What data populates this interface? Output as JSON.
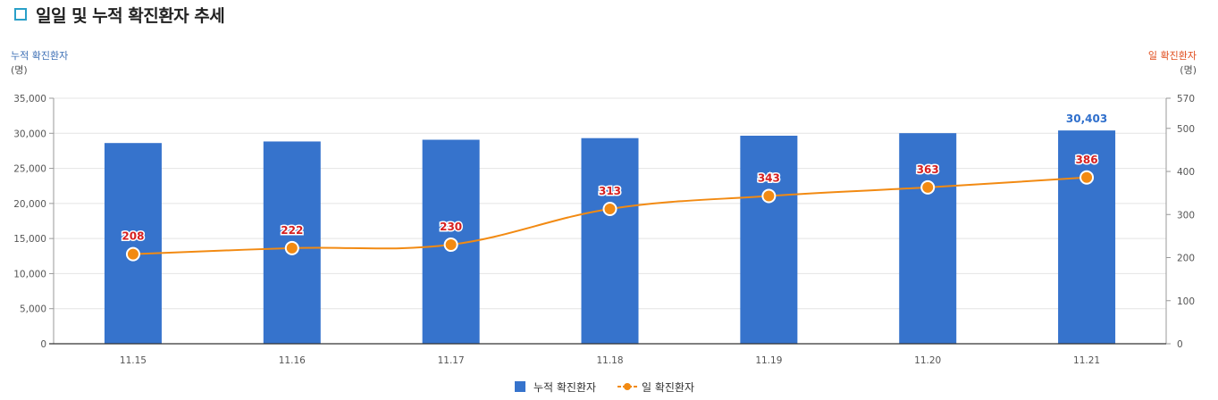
{
  "title": "일일 및 누적 확진환자 추세",
  "colors": {
    "bar": "#3673cc",
    "line": "#f28a12",
    "left_axis_label": "#3d6fb5",
    "right_axis_label": "#e04a1a",
    "point_label": "#d62020",
    "title_icon": "#2aa0c8"
  },
  "chart_data": {
    "type": "bar",
    "categories": [
      "11.15",
      "11.16",
      "11.17",
      "11.18",
      "11.19",
      "11.20",
      "11.21"
    ],
    "series": [
      {
        "name": "누적 확진환자",
        "type": "bar",
        "axis": "left",
        "values": [
          28611,
          28833,
          29081,
          29311,
          29654,
          30017,
          30403
        ]
      },
      {
        "name": "일 확진환자",
        "type": "line",
        "axis": "right",
        "values": [
          208,
          222,
          230,
          313,
          343,
          363,
          386
        ]
      }
    ],
    "data_labels": {
      "bar_last": "30,403",
      "line": [
        "208",
        "222",
        "230",
        "313",
        "343",
        "363",
        "386"
      ]
    },
    "left_axis": {
      "label": "누적 확진환자",
      "unit": "(명)",
      "range": [
        0,
        35000
      ],
      "ticks": [
        "0",
        "5,000",
        "10,000",
        "15,000",
        "20,000",
        "25,000",
        "30,000",
        "35,000"
      ]
    },
    "right_axis": {
      "label": "일 확진환자",
      "unit": "(명)",
      "range": [
        0,
        570
      ],
      "ticks": [
        "0",
        "100",
        "200",
        "300",
        "400",
        "500",
        "570"
      ]
    },
    "legend": {
      "position": "bottom",
      "items": [
        "누적 확진환자",
        "일 확진환자"
      ]
    },
    "grid": true
  }
}
